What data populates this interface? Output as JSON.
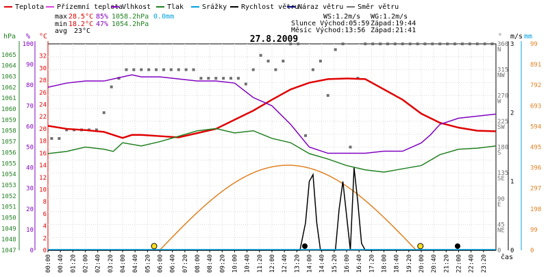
{
  "legend": [
    {
      "label": "Teplota",
      "color": "#e00000"
    },
    {
      "label": "Přízemní teplota",
      "color": "#e040e0"
    },
    {
      "label": "Vlhkost",
      "color": "#8000c0"
    },
    {
      "label": "Tlak",
      "color": "#208020"
    },
    {
      "label": "Srážky",
      "color": "#00a0e0"
    },
    {
      "label": "Rychlost větru",
      "color": "#000000"
    },
    {
      "label": "Náraz větru",
      "color": "#000080"
    },
    {
      "label": "Směr větru",
      "color": "#707070"
    }
  ],
  "stats": {
    "max_label": "max",
    "max_temp": "28.5°C",
    "max_hum": "85%",
    "max_press": "1058.2hPa",
    "max_rain": "0.0mm",
    "min_label": "min",
    "min_temp": "18.2°C",
    "min_hum": "47%",
    "min_press": "1054.2hPa",
    "avg_label": "avg",
    "avg_temp": "23°C"
  },
  "wind_info": {
    "ws": "WS:1.2m/s",
    "wg": "WG:1.2m/s",
    "sun": "Slunce Východ:05:59",
    "sun_set": "Západ:19:44",
    "moon": "Měsíc Východ:13:56",
    "moon_set": "Západ:21:41"
  },
  "date_title": "27.8.2009",
  "axis_units": {
    "hpa": "hPa",
    "pct": "%",
    "degc": "°C",
    "deg": "°",
    "ms": "m/s",
    "mm": "mm",
    "cas": "čas"
  },
  "chart_data": {
    "type": "line",
    "title": "27.8.2009",
    "x_ticks": [
      "00:00",
      "00:40",
      "01:20",
      "02:00",
      "02:40",
      "03:20",
      "04:00",
      "04:40",
      "05:20",
      "06:00",
      "06:40",
      "07:20",
      "08:00",
      "08:40",
      "09:20",
      "10:00",
      "10:40",
      "11:20",
      "12:00",
      "12:40",
      "13:20",
      "14:00",
      "14:40",
      "15:20",
      "16:00",
      "16:40",
      "17:20",
      "18:00",
      "18:40",
      "19:20",
      "20:00",
      "20:40",
      "21:20",
      "22:00",
      "22:40",
      "23:20"
    ],
    "axes": {
      "pressure_hpa": {
        "range": [
          1047,
          1066
        ],
        "ticks": [
          "1065",
          "1064",
          "1063",
          "1062",
          "1061",
          "1060",
          "1059",
          "1058",
          "1057",
          "1056",
          "1055",
          "1054",
          "1053",
          "1052",
          "1051",
          "1050",
          "1049",
          "1048",
          "1047"
        ]
      },
      "humidity_pct": {
        "range": [
          0,
          100
        ],
        "ticks": [
          "100",
          "90",
          "80",
          "70",
          "60",
          "50",
          "40",
          "30",
          "20",
          "10",
          "0"
        ]
      },
      "temperature_c": {
        "range": [
          0,
          34
        ],
        "ticks": [
          "32",
          "30",
          "28",
          "26",
          "24",
          "22",
          "20",
          "18",
          "16",
          "14",
          "12",
          "10",
          "8",
          "6",
          "4",
          "2",
          "0"
        ]
      },
      "direction_deg": {
        "ticks": [
          "360",
          "N",
          "315",
          "NW",
          "270",
          "W",
          "225",
          "SW",
          "180",
          "S",
          "135",
          "SE",
          "90",
          "E",
          "45",
          "NE",
          "0"
        ]
      },
      "wind_ms": {
        "range": [
          0,
          3
        ],
        "ticks": [
          "3",
          "2",
          "1",
          "0"
        ]
      },
      "rain_mm": {
        "range": [
          0,
          99
        ],
        "ticks": [
          "99",
          "891",
          "792",
          "693",
          "594",
          "495",
          "396",
          "297",
          "198",
          "99",
          "0"
        ]
      }
    },
    "series": [
      {
        "name": "Teplota",
        "unit": "°C",
        "x_hours": [
          0,
          1,
          2,
          3,
          3.5,
          4,
          4.5,
          5,
          6,
          7,
          8,
          9,
          10,
          11,
          12,
          13,
          14,
          15,
          16,
          17,
          18,
          19,
          20,
          21,
          22,
          23,
          24
        ],
        "values": [
          20.5,
          20,
          19.8,
          19.5,
          19,
          18.5,
          19,
          19,
          18.8,
          18.6,
          19.3,
          20,
          21.5,
          23,
          24.8,
          26.5,
          27.6,
          28.2,
          28.3,
          28.2,
          26.5,
          24.8,
          22.5,
          21,
          20.2,
          19.7,
          19.6
        ]
      },
      {
        "name": "Vlhkost",
        "unit": "%",
        "x_hours": [
          0,
          1,
          2,
          3,
          4,
          4.5,
          5,
          6,
          7,
          8,
          9,
          10,
          11,
          12,
          13,
          14,
          15,
          16,
          17,
          18,
          19,
          20,
          20.5,
          21,
          22,
          23,
          24
        ],
        "values": [
          79,
          81,
          82,
          82,
          84,
          85,
          84,
          84,
          83,
          82,
          82,
          81,
          74,
          70,
          61,
          50,
          47,
          47,
          47,
          48,
          48,
          52,
          56,
          61,
          64,
          65,
          66
        ]
      },
      {
        "name": "Tlak",
        "unit": "hPa",
        "x_hours": [
          0,
          1,
          2,
          3,
          3.5,
          4,
          5,
          6,
          7,
          8,
          9,
          10,
          11,
          12,
          13,
          14,
          15,
          16,
          17,
          18,
          19,
          20,
          21,
          22,
          23,
          24
        ],
        "values": [
          1055.9,
          1056.1,
          1056.5,
          1056.3,
          1056.1,
          1056.9,
          1056.6,
          1057.0,
          1057.5,
          1058.0,
          1058.2,
          1057.8,
          1058.0,
          1057.3,
          1056.9,
          1055.9,
          1055.4,
          1054.8,
          1054.4,
          1054.2,
          1054.5,
          1054.8,
          1055.8,
          1056.3,
          1056.4,
          1056.6
        ]
      },
      {
        "name": "Rychlost větru",
        "unit": "m/s",
        "x_hours": [
          0,
          13.5,
          13.8,
          14.0,
          14.2,
          14.4,
          14.6,
          15.4,
          15.6,
          15.8,
          16.0,
          16.2,
          16.4,
          16.6,
          16.8,
          17,
          24
        ],
        "values": [
          0,
          0,
          0.4,
          1.0,
          1.1,
          0.4,
          0,
          0,
          0.6,
          1.0,
          0.5,
          0,
          1.2,
          0.7,
          0.1,
          0,
          0
        ]
      },
      {
        "name": "Srážky",
        "unit": "mm",
        "values": [
          0
        ]
      }
    ],
    "sun_curve": {
      "color": "#e08020",
      "rise": "05:59",
      "set": "19:44",
      "peak_hour": 12.8
    },
    "wind_direction": {
      "unit": "°",
      "x_hours": [
        0.2,
        0.6,
        1.0,
        1.4,
        1.8,
        2.2,
        2.6,
        3.0,
        3.4,
        3.8,
        4.2,
        4.6,
        5.0,
        5.4,
        5.8,
        6.2,
        6.6,
        7.0,
        7.4,
        7.8,
        8.2,
        8.6,
        9.0,
        9.4,
        9.8,
        10.2,
        10.6,
        11.0,
        11.4,
        11.8,
        12.2,
        12.6,
        13.0,
        13.4,
        13.8,
        14.2,
        14.6,
        15.0,
        15.4,
        15.8,
        16.2,
        16.6,
        17.0,
        17.4,
        17.8,
        18.2,
        18.6,
        19.0,
        19.4,
        19.8,
        20.2,
        20.6,
        21.0,
        21.4,
        21.8,
        22.2,
        22.6,
        23.0,
        23.4,
        23.8
      ],
      "values": [
        195,
        195,
        210,
        210,
        210,
        210,
        210,
        240,
        285,
        300,
        315,
        315,
        315,
        315,
        315,
        315,
        315,
        315,
        315,
        315,
        300,
        300,
        300,
        300,
        300,
        300,
        290,
        315,
        340,
        330,
        315,
        330,
        360,
        360,
        200,
        315,
        330,
        270,
        350,
        360,
        180,
        300,
        360,
        360,
        360,
        360,
        360,
        360,
        360,
        360,
        360,
        360,
        360,
        360,
        360,
        360,
        360,
        360,
        360,
        360
      ]
    }
  }
}
